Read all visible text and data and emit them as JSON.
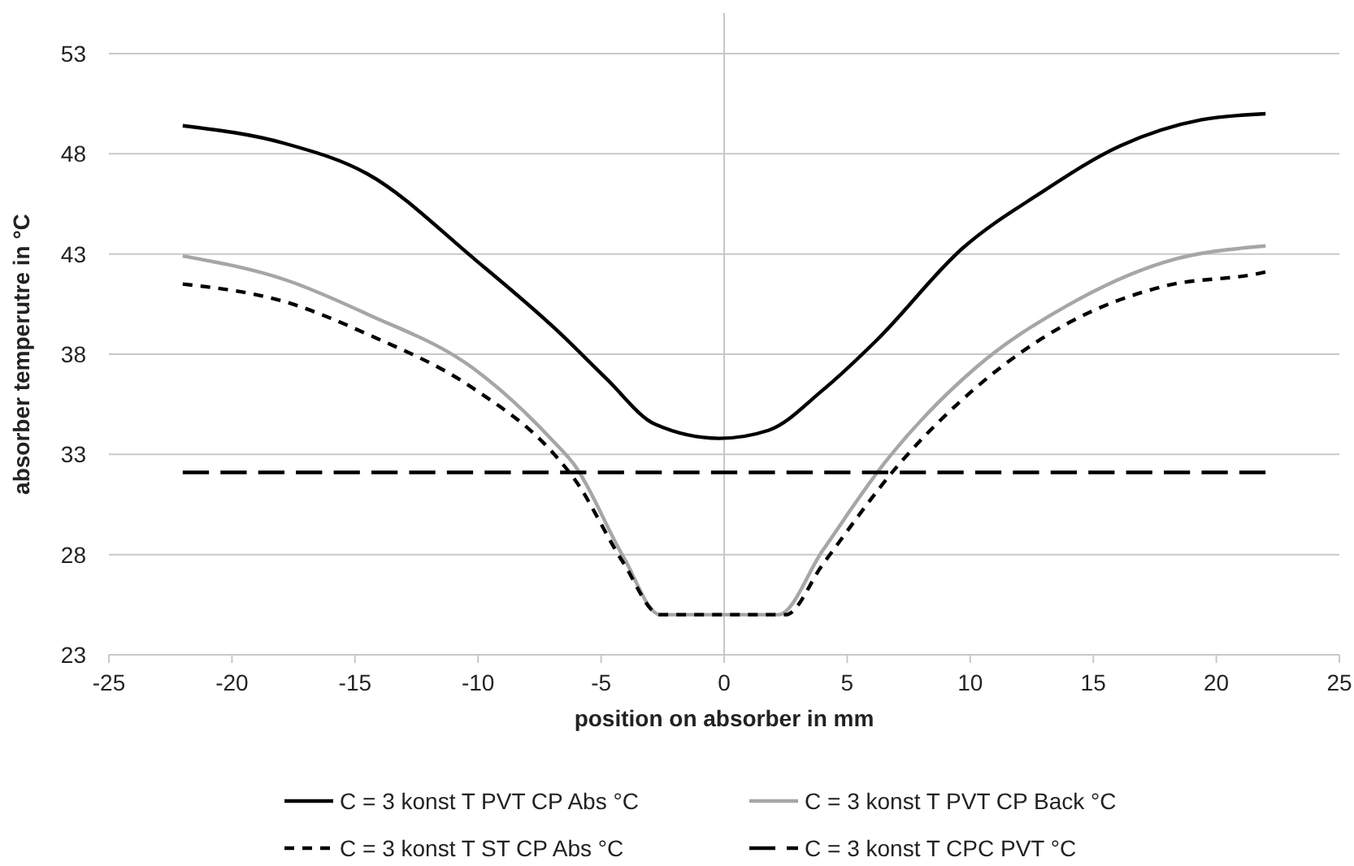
{
  "chart_data": {
    "type": "line",
    "xlabel": "position on absorber in mm",
    "ylabel": "absorber temperutre in °C",
    "xlim": [
      -25,
      25
    ],
    "xticks": [
      -25,
      -20,
      -15,
      -10,
      -5,
      0,
      5,
      10,
      15,
      20,
      25
    ],
    "ylim": [
      23,
      53
    ],
    "yticks": [
      23,
      28,
      33,
      38,
      43,
      48,
      53
    ],
    "grid": "y",
    "legend": "bottom",
    "ref_lines": [
      {
        "axis": "x",
        "value": 0,
        "color": "#c8c8c8"
      }
    ],
    "marker": "none",
    "series": [
      {
        "name": "C = 3 konst T PVT CP Abs °C",
        "color": "#000000",
        "line_style": "solid",
        "x": [
          -22,
          -17.8,
          -14.5,
          -10.1,
          -6.8,
          -4.8,
          -2.8,
          -0.2,
          1.8,
          4,
          6.2,
          9.7,
          12.8,
          16.1,
          19.4,
          22
        ],
        "values": [
          49.4,
          48.5,
          47,
          42.7,
          39.2,
          36.8,
          34.5,
          33.8,
          34.2,
          36.2,
          38.7,
          43.3,
          46,
          48.4,
          49.7,
          50
        ]
      },
      {
        "name": "C = 3 konst T PVT CP Back °C",
        "color": "#a6a6a6",
        "line_style": "solid",
        "x": [
          -22,
          -17.8,
          -14.5,
          -10.2,
          -6.9,
          -6.1,
          -4.1,
          -2.6,
          2.2,
          4,
          6.6,
          10.2,
          13.9,
          17.9,
          22
        ],
        "values": [
          42.9,
          41.7,
          40,
          37.3,
          33.6,
          32.5,
          27.9,
          25,
          25,
          28.2,
          32.7,
          37.3,
          40.4,
          42.6,
          43.4
        ]
      },
      {
        "name": "C = 3 konst T ST CP Abs °C",
        "color": "#000000",
        "line_style": "dotted",
        "x": [
          -22,
          -17.8,
          -14.5,
          -10.2,
          -6.9,
          -6.1,
          -4.1,
          -2.6,
          2.5,
          4,
          7.1,
          10.2,
          13.9,
          17.9,
          21.6,
          22
        ],
        "values": [
          41.5,
          40.6,
          39,
          36.3,
          33,
          31.8,
          27.6,
          25,
          25,
          27.5,
          32.5,
          36.3,
          39.5,
          41.4,
          42,
          42.1
        ]
      },
      {
        "name": "C = 3 konst T CPC PVT °C",
        "color": "#000000",
        "line_style": "dashed",
        "x": [
          -22,
          22
        ],
        "values": [
          32.1,
          32.1
        ]
      }
    ]
  }
}
